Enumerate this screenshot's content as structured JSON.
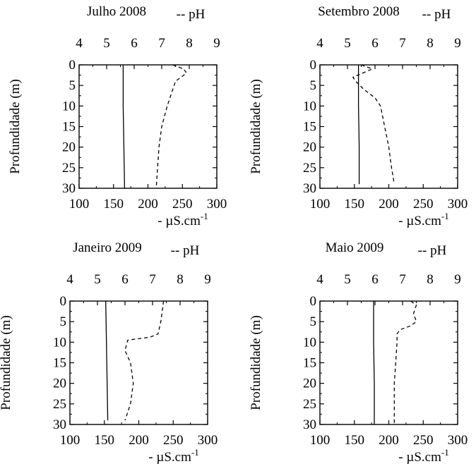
{
  "figure": {
    "ylabel": "Profundidade (m)",
    "top_axis_label": "-- pH",
    "bottom_axis_label_prefix": "- µS.cm",
    "bottom_axis_label_sup": "-1"
  },
  "chart_data": [
    {
      "type": "line",
      "title": "Julho 2008",
      "top_axis": {
        "label": "-- pH",
        "range": [
          4,
          9
        ],
        "ticks": [
          4,
          5,
          6,
          7,
          8,
          9
        ]
      },
      "bottom_axis": {
        "label": "µS.cm-1",
        "range": [
          100,
          300
        ],
        "ticks": [
          100,
          150,
          200,
          250,
          300
        ]
      },
      "y_axis": {
        "label": "Profundidade (m)",
        "range": [
          0,
          30
        ],
        "inverted": true,
        "ticks": [
          0,
          5,
          10,
          15,
          20,
          25,
          30
        ]
      },
      "series": [
        {
          "name": "µS.cm-1",
          "axis": "bottom",
          "style": "solid",
          "points": [
            [
              164,
              0
            ],
            [
              164,
              10
            ],
            [
              165,
              20
            ],
            [
              166,
              30
            ]
          ]
        },
        {
          "name": "pH",
          "axis": "top",
          "style": "dashed",
          "points": [
            [
              7.4,
              0
            ],
            [
              7.8,
              1
            ],
            [
              7.9,
              2
            ],
            [
              7.5,
              4
            ],
            [
              7.4,
              6
            ],
            [
              7.2,
              10
            ],
            [
              7.0,
              15
            ],
            [
              6.9,
              20
            ],
            [
              6.85,
              25
            ],
            [
              6.8,
              30
            ]
          ]
        }
      ]
    },
    {
      "type": "line",
      "title": "Setembro 2008",
      "top_axis": {
        "label": "-- pH",
        "range": [
          4,
          9
        ],
        "ticks": [
          4,
          5,
          6,
          7,
          8,
          9
        ]
      },
      "bottom_axis": {
        "label": "µS.cm-1",
        "range": [
          100,
          300
        ],
        "ticks": [
          100,
          150,
          200,
          250,
          300
        ]
      },
      "y_axis": {
        "label": "Profundidade (m)",
        "range": [
          0,
          30
        ],
        "inverted": true,
        "ticks": [
          0,
          5,
          10,
          15,
          20,
          25,
          30
        ]
      },
      "series": [
        {
          "name": "µS.cm-1",
          "axis": "bottom",
          "style": "solid",
          "points": [
            [
              156,
              0
            ],
            [
              156,
              10
            ],
            [
              157,
              20
            ],
            [
              157,
              29
            ]
          ]
        },
        {
          "name": "pH",
          "axis": "top",
          "style": "dashed",
          "points": [
            [
              5.5,
              0
            ],
            [
              5.9,
              1
            ],
            [
              5.2,
              3
            ],
            [
              5.3,
              4
            ],
            [
              5.6,
              6
            ],
            [
              6.0,
              8
            ],
            [
              6.2,
              10
            ],
            [
              6.5,
              20
            ],
            [
              6.6,
              25
            ],
            [
              6.7,
              29
            ]
          ]
        }
      ]
    },
    {
      "type": "line",
      "title": "Janeiro 2009",
      "top_axis": {
        "label": "-- pH",
        "range": [
          4,
          9
        ],
        "ticks": [
          4,
          5,
          6,
          7,
          8,
          9
        ]
      },
      "bottom_axis": {
        "label": "µS.cm-1",
        "range": [
          100,
          300
        ],
        "ticks": [
          100,
          150,
          200,
          250,
          300
        ]
      },
      "y_axis": {
        "label": "Profundidade (m)",
        "range": [
          0,
          30
        ],
        "inverted": true,
        "ticks": [
          0,
          5,
          10,
          15,
          20,
          25,
          30
        ]
      },
      "series": [
        {
          "name": "µS.cm-1",
          "axis": "bottom",
          "style": "solid",
          "points": [
            [
              152,
              0
            ],
            [
              153,
              10
            ],
            [
              154,
              20
            ],
            [
              155,
              29
            ]
          ]
        },
        {
          "name": "pH",
          "axis": "top",
          "style": "dashed",
          "points": [
            [
              7.4,
              0
            ],
            [
              7.3,
              5
            ],
            [
              7.2,
              8
            ],
            [
              6.9,
              8.8
            ],
            [
              6.1,
              9.5
            ],
            [
              6.0,
              12
            ],
            [
              6.2,
              15
            ],
            [
              6.3,
              20
            ],
            [
              6.2,
              25
            ],
            [
              6.0,
              29
            ]
          ]
        }
      ]
    },
    {
      "type": "line",
      "title": "Maio 2009",
      "top_axis": {
        "label": "-- pH",
        "range": [
          4,
          9
        ],
        "ticks": [
          4,
          5,
          6,
          7,
          8,
          9
        ]
      },
      "bottom_axis": {
        "label": "µS.cm-1",
        "range": [
          100,
          300
        ],
        "ticks": [
          100,
          150,
          200,
          250,
          300
        ]
      },
      "y_axis": {
        "label": "Profundidade (m)",
        "range": [
          0,
          30
        ],
        "inverted": true,
        "ticks": [
          0,
          5,
          10,
          15,
          20,
          25,
          30
        ]
      },
      "series": [
        {
          "name": "µS.cm-1",
          "axis": "bottom",
          "style": "solid",
          "points": [
            [
              178,
              0
            ],
            [
              178,
              10
            ],
            [
              179,
              20
            ],
            [
              179,
              30
            ]
          ]
        },
        {
          "name": "pH",
          "axis": "top",
          "style": "dashed",
          "points": [
            [
              7.3,
              0
            ],
            [
              7.5,
              1
            ],
            [
              7.4,
              3
            ],
            [
              7.5,
              5
            ],
            [
              7.3,
              6
            ],
            [
              6.9,
              7
            ],
            [
              6.8,
              8
            ],
            [
              6.8,
              10
            ],
            [
              6.75,
              15
            ],
            [
              6.7,
              20
            ],
            [
              6.7,
              25
            ],
            [
              6.7,
              30
            ]
          ]
        }
      ]
    }
  ]
}
